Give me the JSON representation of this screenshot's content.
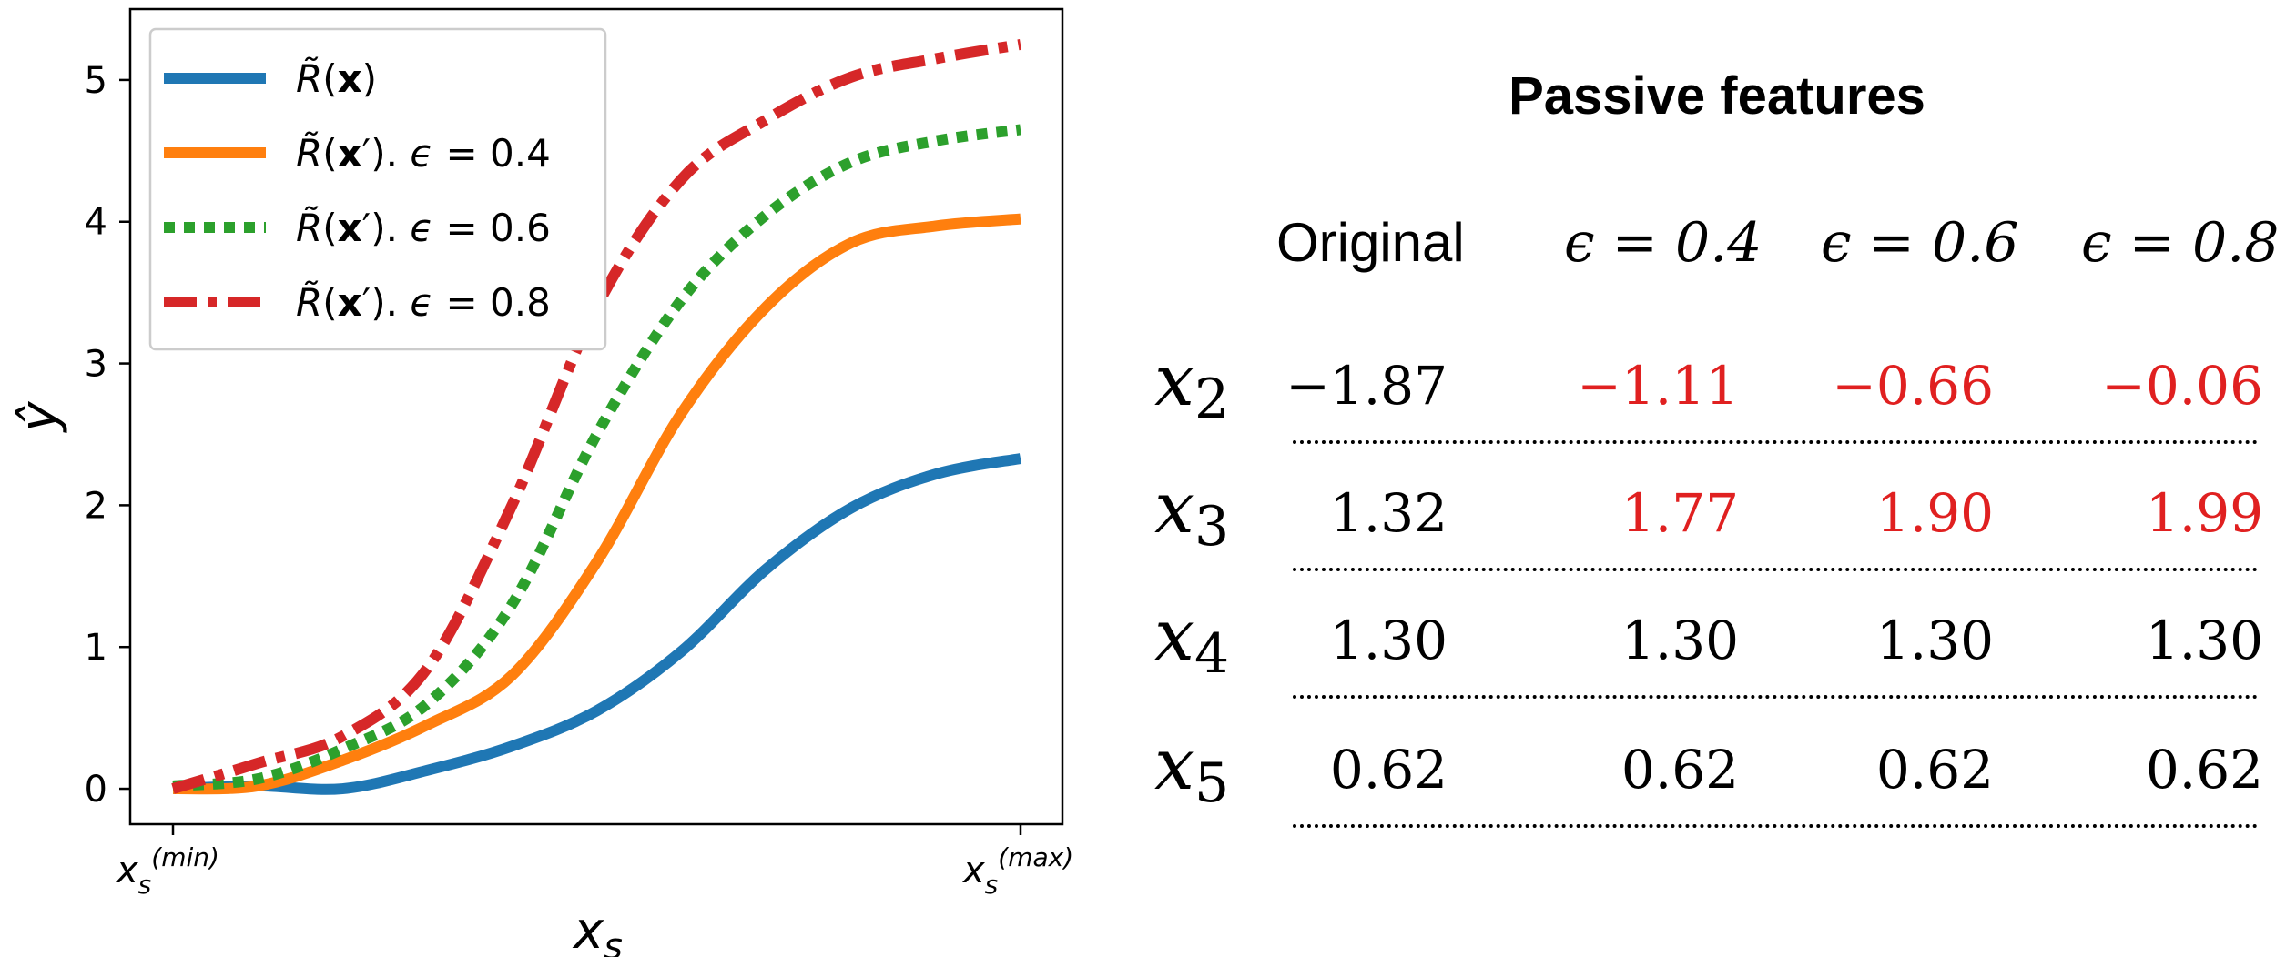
{
  "chart_data": {
    "type": "line",
    "xlabel": "x_s",
    "ylabel": "ŷ",
    "x_ticks": [
      "x_s^(min)",
      "x_s^(max)"
    ],
    "ylim": [
      -0.25,
      5.5
    ],
    "y_ticks": [
      0,
      1,
      2,
      3,
      4,
      5
    ],
    "grid": false,
    "legend_position": "top-left",
    "x": [
      0.0,
      0.1,
      0.2,
      0.3,
      0.4,
      0.5,
      0.6,
      0.7,
      0.8,
      0.9,
      1.0
    ],
    "series": [
      {
        "name": "R̃(x)",
        "color": "#1f77b4",
        "style": "solid",
        "values": [
          0.0,
          0.02,
          0.0,
          0.13,
          0.3,
          0.55,
          0.97,
          1.55,
          1.98,
          2.22,
          2.33
        ]
      },
      {
        "name": "R̃(x′). ϵ = 0.4",
        "color": "#ff7f0e",
        "style": "solid",
        "values": [
          0.0,
          0.02,
          0.2,
          0.45,
          0.8,
          1.6,
          2.65,
          3.4,
          3.85,
          3.97,
          4.02
        ]
      },
      {
        "name": "R̃(x′). ϵ = 0.6",
        "color": "#2ca02c",
        "style": "dotted",
        "values": [
          0.02,
          0.07,
          0.28,
          0.6,
          1.3,
          2.5,
          3.45,
          4.05,
          4.42,
          4.57,
          4.65
        ]
      },
      {
        "name": "R̃(x′). ϵ = 0.8",
        "color": "#d62728",
        "style": "dashdot",
        "values": [
          0.0,
          0.18,
          0.37,
          0.85,
          2.0,
          3.4,
          4.3,
          4.72,
          5.02,
          5.15,
          5.25
        ]
      }
    ]
  },
  "table": {
    "title": "Passive features",
    "columns": [
      "Original",
      "ϵ = 0.4",
      "ϵ = 0.6",
      "ϵ = 0.8"
    ],
    "changed_color": "#e02020",
    "rows": [
      {
        "label": "x",
        "sub": "2",
        "values": [
          "−1.87",
          "−1.11",
          "−0.66",
          "−0.06"
        ],
        "changed": [
          false,
          true,
          true,
          true
        ]
      },
      {
        "label": "x",
        "sub": "3",
        "values": [
          "1.32",
          "1.77",
          "1.90",
          "1.99"
        ],
        "changed": [
          false,
          true,
          true,
          true
        ]
      },
      {
        "label": "x",
        "sub": "4",
        "values": [
          "1.30",
          "1.30",
          "1.30",
          "1.30"
        ],
        "changed": [
          false,
          false,
          false,
          false
        ]
      },
      {
        "label": "x",
        "sub": "5",
        "values": [
          "0.62",
          "0.62",
          "0.62",
          "0.62"
        ],
        "changed": [
          false,
          false,
          false,
          false
        ]
      }
    ]
  }
}
